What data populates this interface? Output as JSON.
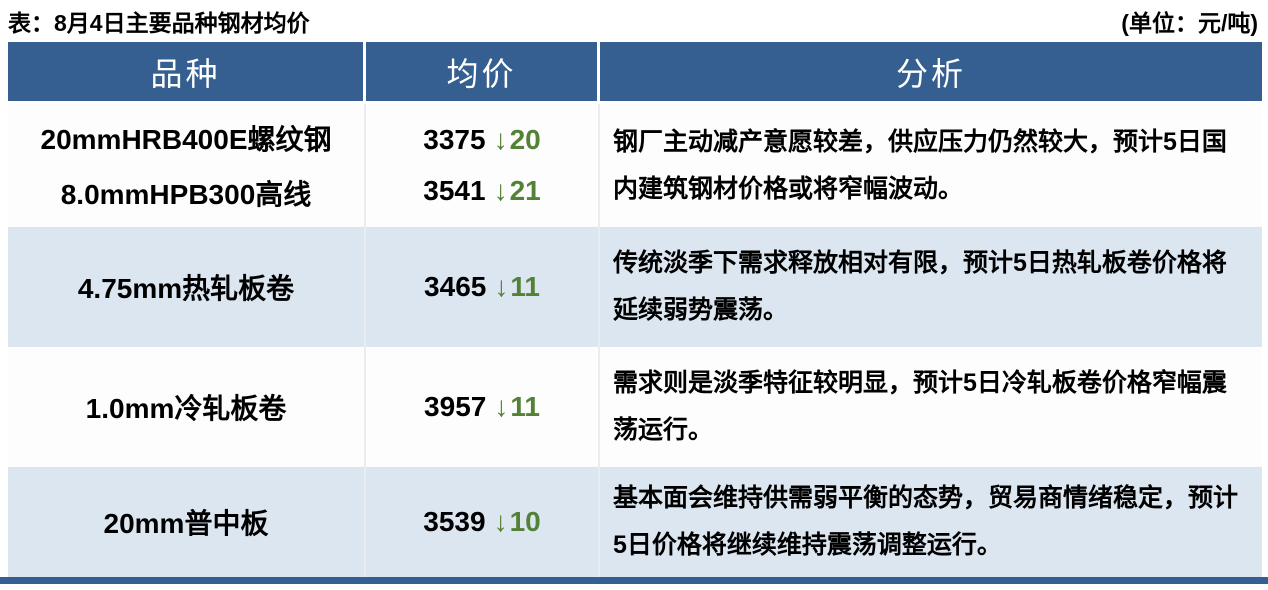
{
  "page": {
    "title": "表：8月4日主要品种钢材均价",
    "unit": "(单位：元/吨)"
  },
  "colors": {
    "header_bg": "#365F91",
    "row_alt_bg": "#DCE6F1",
    "row_bg": "#FDFDFE",
    "bottom_bar": "#365F91",
    "down_green": "#538135",
    "header_text": "#FFFFFF",
    "body_text": "#000000"
  },
  "icons": {
    "down_arrow": "↓"
  },
  "table": {
    "columns": [
      "品种",
      "均价",
      "分析"
    ],
    "rows": [
      {
        "products": [
          "20mmHRB400E螺纹钢",
          "8.0mmHPB300高线"
        ],
        "prices": [
          {
            "value": "3375",
            "delta": "20"
          },
          {
            "value": "3541",
            "delta": "21"
          }
        ],
        "analysis": "钢厂主动减产意愿较差，供应压力仍然较大，预计5日国内建筑钢材价格或将窄幅波动。"
      },
      {
        "products": [
          "4.75mm热轧板卷"
        ],
        "prices": [
          {
            "value": "3465",
            "delta": "11"
          }
        ],
        "analysis": "传统淡季下需求释放相对有限，预计5日热轧板卷价格将延续弱势震荡。"
      },
      {
        "products": [
          "1.0mm冷轧板卷"
        ],
        "prices": [
          {
            "value": "3957",
            "delta": "11"
          }
        ],
        "analysis": "需求则是淡季特征较明显，预计5日冷轧板卷价格窄幅震荡运行。"
      },
      {
        "products": [
          "20mm普中板"
        ],
        "prices": [
          {
            "value": "3539",
            "delta": "10"
          }
        ],
        "analysis": "基本面会维持供需弱平衡的态势，贸易商情绪稳定，预计5日价格将继续维持震荡调整运行。"
      }
    ]
  }
}
